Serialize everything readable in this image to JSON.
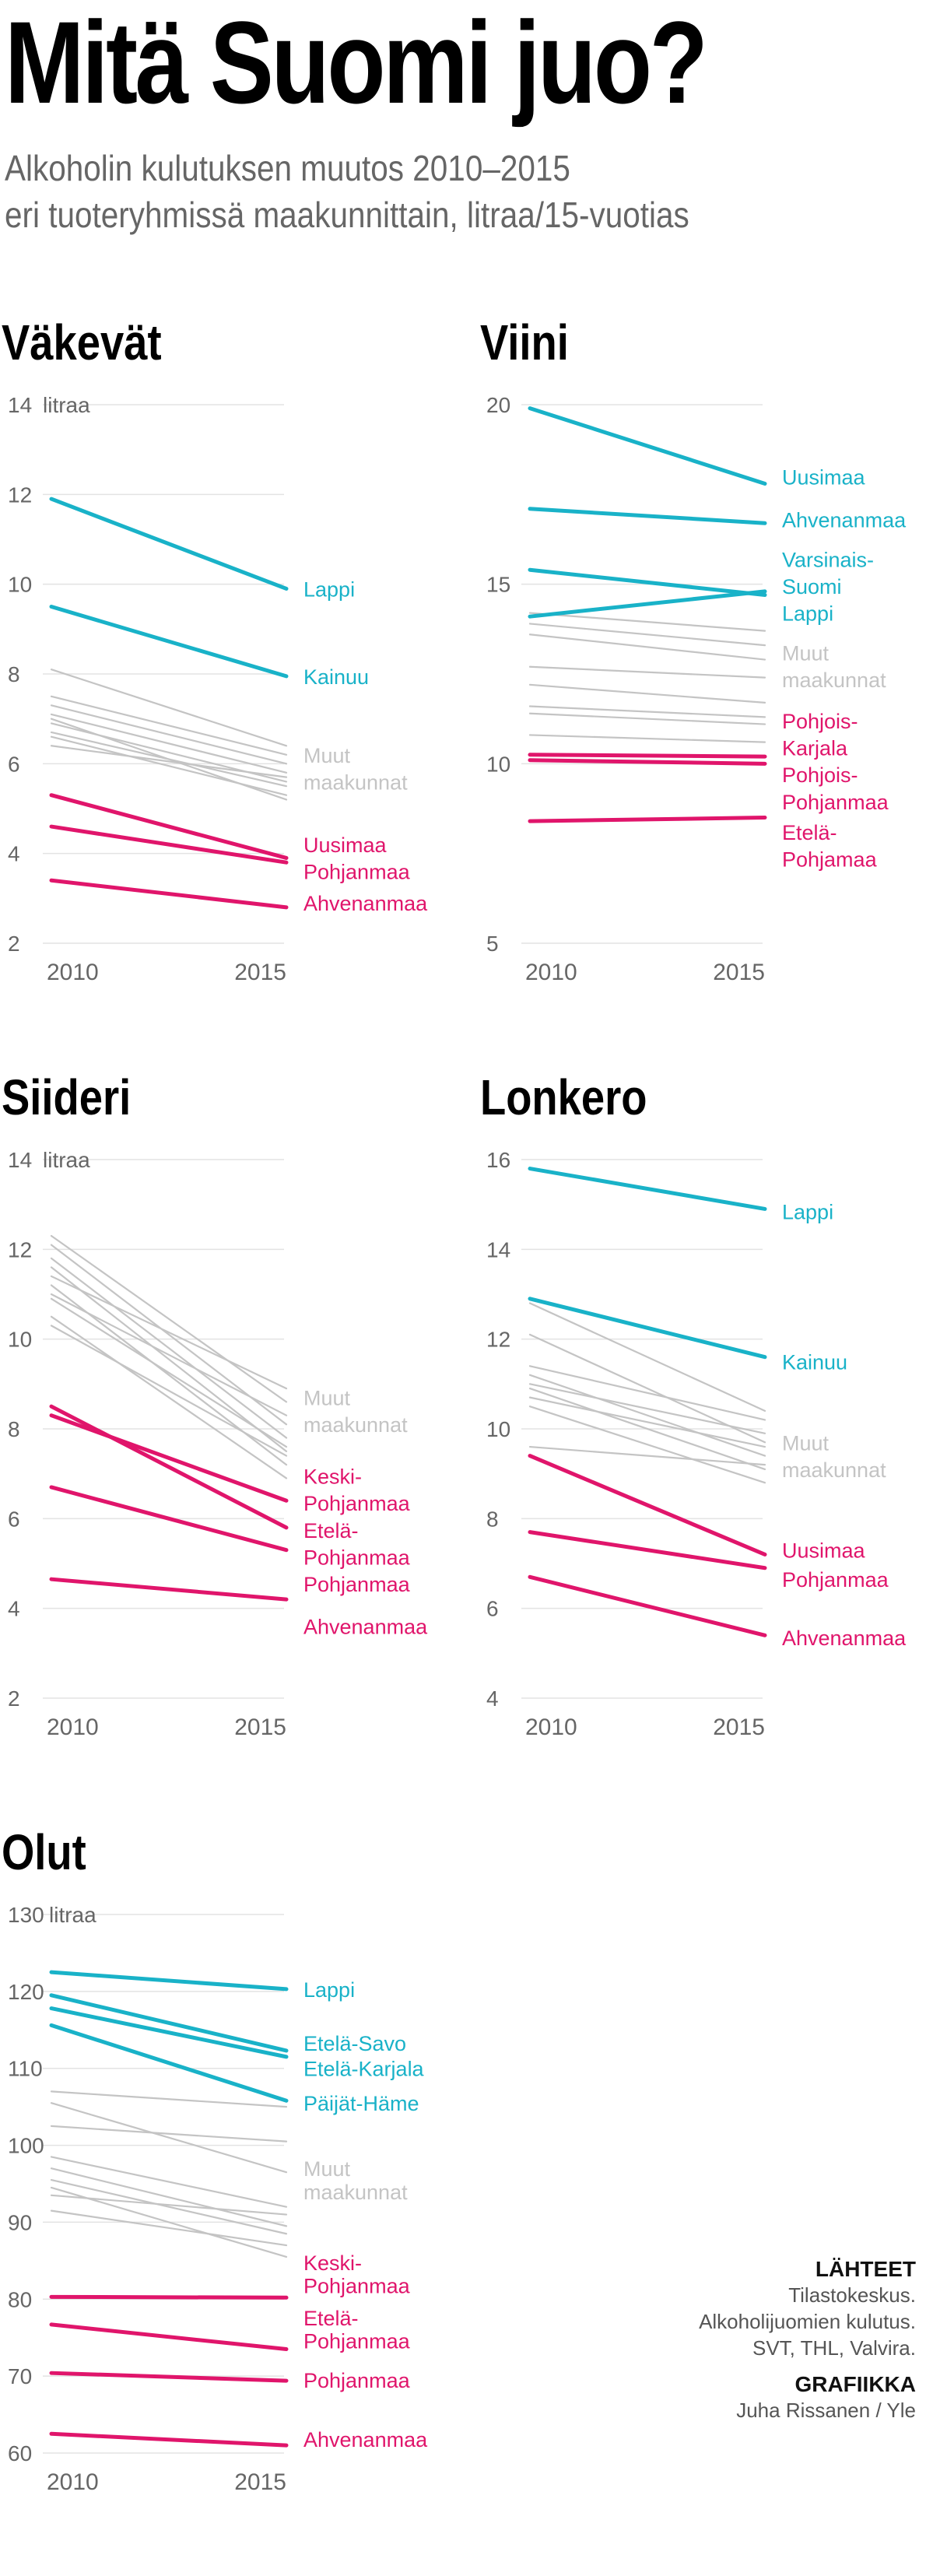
{
  "title": "Mitä Suomi juo?",
  "subtitle_lines": [
    "Alkoholin kulutuksen muutos 2010–2015",
    "eri tuoteryhmissä maakunnittain, litraa/15-vuotias"
  ],
  "colors": {
    "blue": "#19b2c8",
    "pink": "#e0156b",
    "grey": "#c4c4c4",
    "grid": "#e3e3e3"
  },
  "sources": {
    "heading": "LÄHTEET",
    "lines": [
      "Tilastokeskus.",
      "Alkoholijuomien kulutus.",
      "SVT, THL, Valvira."
    ],
    "graphics_heading": "GRAFIIKKA",
    "graphics_credit": "Juha Rissanen / Yle"
  },
  "chart_data": [
    {
      "type": "line",
      "title": "Väkevät",
      "x": [
        "2010",
        "2015"
      ],
      "ylim": [
        2,
        14
      ],
      "yticks": [
        "2",
        "4",
        "6",
        "8",
        "10",
        "12",
        "14"
      ],
      "unit": "litraa",
      "series": [
        {
          "name": "Lappi",
          "group": "blue",
          "values": [
            11.9,
            9.9
          ]
        },
        {
          "name": "Kainuu",
          "group": "blue",
          "values": [
            9.5,
            7.95
          ]
        },
        {
          "name": "Muut maakunnat",
          "group": "grey",
          "values": [
            8.1,
            6.4
          ]
        },
        {
          "name": "",
          "group": "grey",
          "values": [
            7.5,
            6.2
          ]
        },
        {
          "name": "",
          "group": "grey",
          "values": [
            7.3,
            6.0
          ]
        },
        {
          "name": "",
          "group": "grey",
          "values": [
            7.1,
            5.8
          ]
        },
        {
          "name": "",
          "group": "grey",
          "values": [
            6.9,
            5.6
          ]
        },
        {
          "name": "",
          "group": "grey",
          "values": [
            6.7,
            5.5
          ]
        },
        {
          "name": "",
          "group": "grey",
          "values": [
            6.6,
            5.3
          ]
        },
        {
          "name": "",
          "group": "grey",
          "values": [
            7.0,
            5.2
          ]
        },
        {
          "name": "",
          "group": "grey",
          "values": [
            6.4,
            5.7
          ]
        },
        {
          "name": "Uusimaa",
          "group": "pink",
          "values": [
            5.3,
            3.9
          ]
        },
        {
          "name": "Pohjanmaa",
          "group": "pink",
          "values": [
            4.6,
            3.8
          ]
        },
        {
          "name": "Ahvenanmaa",
          "group": "pink",
          "values": [
            3.4,
            2.8
          ]
        }
      ],
      "labels": [
        {
          "text": "Lappi",
          "group": "blue",
          "y": 9.9
        },
        {
          "text": "Kainuu",
          "group": "blue",
          "y": 7.95
        },
        {
          "text": "Muut",
          "group": "grey",
          "y": 6.2
        },
        {
          "text": "maakunnat",
          "group": "grey",
          "y": 5.6
        },
        {
          "text": "Uusimaa",
          "group": "pink",
          "y": 4.2
        },
        {
          "text": "Pohjanmaa",
          "group": "pink",
          "y": 3.6
        },
        {
          "text": "Ahvenanmaa",
          "group": "pink",
          "y": 2.9
        }
      ]
    },
    {
      "type": "line",
      "title": "Viini",
      "x": [
        "2010",
        "2015"
      ],
      "ylim": [
        5,
        20
      ],
      "yticks": [
        "5",
        "10",
        "15",
        "20"
      ],
      "unit": "",
      "series": [
        {
          "name": "Uusimaa",
          "group": "blue",
          "values": [
            19.9,
            17.8
          ]
        },
        {
          "name": "Ahvenanmaa",
          "group": "blue",
          "values": [
            17.1,
            16.7
          ]
        },
        {
          "name": "Varsinais-Suomi",
          "group": "blue",
          "values": [
            15.4,
            14.7
          ]
        },
        {
          "name": "Lappi",
          "group": "blue",
          "values": [
            14.1,
            14.8
          ]
        },
        {
          "name": "Muut maakunnat",
          "group": "grey",
          "values": [
            14.2,
            13.7
          ]
        },
        {
          "name": "",
          "group": "grey",
          "values": [
            13.9,
            13.3
          ]
        },
        {
          "name": "",
          "group": "grey",
          "values": [
            13.6,
            12.9
          ]
        },
        {
          "name": "",
          "group": "grey",
          "values": [
            12.7,
            12.4
          ]
        },
        {
          "name": "",
          "group": "grey",
          "values": [
            12.2,
            11.7
          ]
        },
        {
          "name": "",
          "group": "grey",
          "values": [
            11.6,
            11.3
          ]
        },
        {
          "name": "",
          "group": "grey",
          "values": [
            11.4,
            11.1
          ]
        },
        {
          "name": "",
          "group": "grey",
          "values": [
            10.8,
            10.6
          ]
        },
        {
          "name": "Pohjois-Karjala",
          "group": "pink",
          "values": [
            10.25,
            10.2
          ]
        },
        {
          "name": "Pohjois-Pohjanmaa",
          "group": "pink",
          "values": [
            10.1,
            10.0
          ]
        },
        {
          "name": "Etelä-Pohjamaa",
          "group": "pink",
          "values": [
            8.4,
            8.5
          ]
        }
      ],
      "labels": [
        {
          "text": "Uusimaa",
          "group": "blue",
          "y": 18.0
        },
        {
          "text": "Ahvenanmaa",
          "group": "blue",
          "y": 16.8
        },
        {
          "text": "Varsinais-",
          "group": "blue",
          "y": 15.7
        },
        {
          "text": "Suomi",
          "group": "blue",
          "y": 14.95
        },
        {
          "text": "Lappi",
          "group": "blue",
          "y": 14.2
        },
        {
          "text": "Muut",
          "group": "grey",
          "y": 13.1
        },
        {
          "text": "maakunnat",
          "group": "grey",
          "y": 12.35
        },
        {
          "text": "Pohjois-",
          "group": "pink",
          "y": 11.2
        },
        {
          "text": "Karjala",
          "group": "pink",
          "y": 10.45
        },
        {
          "text": "Pohjois-",
          "group": "pink",
          "y": 9.7
        },
        {
          "text": "Pohjanmaa",
          "group": "pink",
          "y": 8.95
        },
        {
          "text": "Etelä-",
          "group": "pink",
          "y": 8.1
        },
        {
          "text": "Pohjamaa",
          "group": "pink",
          "y": 7.35
        }
      ]
    },
    {
      "type": "line",
      "title": "Siideri",
      "x": [
        "2010",
        "2015"
      ],
      "ylim": [
        2,
        14
      ],
      "yticks": [
        "2",
        "4",
        "6",
        "8",
        "10",
        "12",
        "14"
      ],
      "unit": "litraa",
      "series": [
        {
          "name": "Muut maakunnat",
          "group": "grey",
          "values": [
            12.3,
            8.6
          ]
        },
        {
          "name": "",
          "group": "grey",
          "values": [
            12.1,
            8.1
          ]
        },
        {
          "name": "",
          "group": "grey",
          "values": [
            11.8,
            7.8
          ]
        },
        {
          "name": "",
          "group": "grey",
          "values": [
            11.6,
            7.5
          ]
        },
        {
          "name": "",
          "group": "grey",
          "values": [
            11.4,
            8.9
          ]
        },
        {
          "name": "",
          "group": "grey",
          "values": [
            11.2,
            7.2
          ]
        },
        {
          "name": "",
          "group": "grey",
          "values": [
            10.9,
            7.6
          ]
        },
        {
          "name": "",
          "group": "grey",
          "values": [
            10.5,
            6.9
          ]
        },
        {
          "name": "",
          "group": "grey",
          "values": [
            10.3,
            7.4
          ]
        },
        {
          "name": "",
          "group": "grey",
          "values": [
            11.0,
            8.3
          ]
        },
        {
          "name": "Keski-Pohjanmaa",
          "group": "pink",
          "values": [
            8.3,
            6.4
          ]
        },
        {
          "name": "Etelä-Pohjanmaa",
          "group": "pink",
          "values": [
            8.5,
            5.8
          ]
        },
        {
          "name": "Pohjanmaa",
          "group": "pink",
          "values": [
            6.7,
            5.3
          ]
        },
        {
          "name": "Ahvenanmaa",
          "group": "pink",
          "values": [
            4.65,
            4.2
          ]
        }
      ],
      "labels": [
        {
          "text": "Muut",
          "group": "grey",
          "y": 8.7
        },
        {
          "text": "maakunnat",
          "group": "grey",
          "y": 8.1
        },
        {
          "text": "Keski-",
          "group": "pink",
          "y": 6.95
        },
        {
          "text": "Pohjanmaa",
          "group": "pink",
          "y": 6.35
        },
        {
          "text": "Etelä-",
          "group": "pink",
          "y": 5.75
        },
        {
          "text": "Pohjanmaa",
          "group": "pink",
          "y": 5.15
        },
        {
          "text": "Pohjanmaa",
          "group": "pink",
          "y": 4.55
        },
        {
          "text": "Ahvenanmaa",
          "group": "pink",
          "y": 3.6
        }
      ]
    },
    {
      "type": "line",
      "title": "Lonkero",
      "x": [
        "2010",
        "2015"
      ],
      "ylim": [
        4,
        16
      ],
      "yticks": [
        "4",
        "6",
        "8",
        "10",
        "12",
        "14",
        "16"
      ],
      "unit": "",
      "series": [
        {
          "name": "Lappi",
          "group": "blue",
          "values": [
            15.8,
            14.9
          ]
        },
        {
          "name": "Kainuu",
          "group": "blue",
          "values": [
            12.9,
            11.6
          ]
        },
        {
          "name": "Muut maakunnat",
          "group": "grey",
          "values": [
            12.8,
            10.4
          ]
        },
        {
          "name": "",
          "group": "grey",
          "values": [
            12.1,
            9.7
          ]
        },
        {
          "name": "",
          "group": "grey",
          "values": [
            11.4,
            10.2
          ]
        },
        {
          "name": "",
          "group": "grey",
          "values": [
            11.2,
            9.4
          ]
        },
        {
          "name": "",
          "group": "grey",
          "values": [
            11.0,
            9.9
          ]
        },
        {
          "name": "",
          "group": "grey",
          "values": [
            10.9,
            9.1
          ]
        },
        {
          "name": "",
          "group": "grey",
          "values": [
            10.7,
            9.6
          ]
        },
        {
          "name": "",
          "group": "grey",
          "values": [
            10.5,
            8.8
          ]
        },
        {
          "name": "",
          "group": "grey",
          "values": [
            9.6,
            9.2
          ]
        },
        {
          "name": "Uusimaa",
          "group": "pink",
          "values": [
            9.4,
            7.2
          ]
        },
        {
          "name": "Pohjanmaa",
          "group": "pink",
          "values": [
            7.7,
            6.9
          ]
        },
        {
          "name": "Ahvenanmaa",
          "group": "pink",
          "values": [
            6.7,
            5.4
          ]
        }
      ],
      "labels": [
        {
          "text": "Lappi",
          "group": "blue",
          "y": 14.85
        },
        {
          "text": "Kainuu",
          "group": "blue",
          "y": 11.5
        },
        {
          "text": "Muut",
          "group": "grey",
          "y": 9.7
        },
        {
          "text": "maakunnat",
          "group": "grey",
          "y": 9.1
        },
        {
          "text": "Uusimaa",
          "group": "pink",
          "y": 7.3
        },
        {
          "text": "Pohjanmaa",
          "group": "pink",
          "y": 6.65
        },
        {
          "text": "Ahvenanmaa",
          "group": "pink",
          "y": 5.35
        }
      ]
    },
    {
      "type": "line",
      "title": "Olut",
      "x": [
        "2010",
        "2015"
      ],
      "ylim": [
        60,
        130
      ],
      "yticks": [
        "60",
        "70",
        "80",
        "90",
        "100",
        "110",
        "120",
        "130"
      ],
      "unit": "litraa",
      "series": [
        {
          "name": "Lappi",
          "group": "blue",
          "values": [
            122.5,
            120.3
          ]
        },
        {
          "name": "Etelä-Savo",
          "group": "blue",
          "values": [
            119.5,
            112.3
          ]
        },
        {
          "name": "Etelä-Karjala",
          "group": "blue",
          "values": [
            117.8,
            111.5
          ]
        },
        {
          "name": "Päijät-Häme",
          "group": "blue",
          "values": [
            115.6,
            105.8
          ]
        },
        {
          "name": "Muut maakunnat",
          "group": "grey",
          "values": [
            107.0,
            105.0
          ]
        },
        {
          "name": "",
          "group": "grey",
          "values": [
            105.5,
            96.5
          ]
        },
        {
          "name": "",
          "group": "grey",
          "values": [
            102.5,
            100.5
          ]
        },
        {
          "name": "",
          "group": "grey",
          "values": [
            98.5,
            92.0
          ]
        },
        {
          "name": "",
          "group": "grey",
          "values": [
            97.0,
            89.5
          ]
        },
        {
          "name": "",
          "group": "grey",
          "values": [
            95.5,
            88.5
          ]
        },
        {
          "name": "",
          "group": "grey",
          "values": [
            94.5,
            85.5
          ]
        },
        {
          "name": "",
          "group": "grey",
          "values": [
            93.5,
            91.0
          ]
        },
        {
          "name": "",
          "group": "grey",
          "values": [
            91.5,
            87.0
          ]
        },
        {
          "name": "Keski-Pohjanmaa",
          "group": "pink",
          "values": [
            80.3,
            80.2
          ]
        },
        {
          "name": "Etelä-Pohjanmaa",
          "group": "pink",
          "values": [
            76.7,
            73.5
          ]
        },
        {
          "name": "Pohjanmaa",
          "group": "pink",
          "values": [
            70.4,
            69.4
          ]
        },
        {
          "name": "Ahvenanmaa",
          "group": "pink",
          "values": [
            62.5,
            61.0
          ]
        }
      ],
      "labels": [
        {
          "text": "Lappi",
          "group": "blue",
          "y": 120.3
        },
        {
          "text": "Etelä-Savo",
          "group": "blue",
          "y": 113.3
        },
        {
          "text": "Etelä-Karjala",
          "group": "blue",
          "y": 110.0
        },
        {
          "text": "Päijät-Häme",
          "group": "blue",
          "y": 105.5
        },
        {
          "text": "Muut",
          "group": "grey",
          "y": 97.0
        },
        {
          "text": "maakunnat",
          "group": "grey",
          "y": 94.0
        },
        {
          "text": "Keski-",
          "group": "pink",
          "y": 84.8
        },
        {
          "text": "Pohjanmaa",
          "group": "pink",
          "y": 81.8
        },
        {
          "text": "Etelä-",
          "group": "pink",
          "y": 77.6
        },
        {
          "text": "Pohjanmaa",
          "group": "pink",
          "y": 74.6
        },
        {
          "text": "Pohjanmaa",
          "group": "pink",
          "y": 69.5
        },
        {
          "text": "Ahvenanmaa",
          "group": "pink",
          "y": 61.8
        }
      ]
    }
  ]
}
